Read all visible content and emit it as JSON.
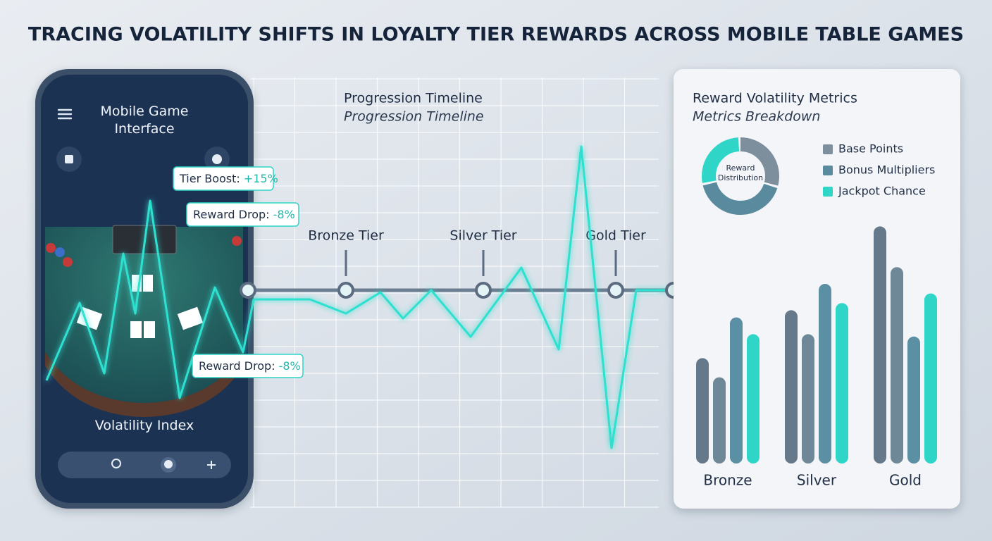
{
  "header": {
    "title": "TRACING VOLATILITY SHIFTS IN LOYALTY TIER REWARDS ACROSS MOBILE TABLE GAMES"
  },
  "phone": {
    "title": "Mobile Game Interface",
    "callouts": [
      {
        "label": "Tier Boost:",
        "value": "+15%"
      },
      {
        "label": "Reward Drop:",
        "value": "-8%"
      },
      {
        "label": "Reward Drop:",
        "value": "-8%"
      }
    ],
    "footer": "Volatility Index"
  },
  "timeline": {
    "title": "Progression Timeline",
    "subtitle": "Progression Timeline",
    "tiers": [
      "Bronze Tier",
      "Silver Tier",
      "Gold Tier"
    ]
  },
  "metrics": {
    "title": "Reward Volatility Metrics",
    "subtitle": "Metrics Breakdown",
    "donut": {
      "center_label": "Reward Distribution",
      "segments": [
        {
          "name": "Base Points",
          "color": "#7d8e9c",
          "value": 30
        },
        {
          "name": "Bonus Multipliers",
          "color": "#5a8a9e",
          "value": 42
        },
        {
          "name": "Jackpot Chance",
          "color": "#2fd6c8",
          "value": 28
        }
      ]
    },
    "bars": {
      "categories": [
        "Bronze",
        "Silver",
        "Gold"
      ],
      "series": [
        {
          "color": "#66798a",
          "values": [
            44,
            64,
            99
          ]
        },
        {
          "color": "#6f8898",
          "values": [
            36,
            54,
            82
          ]
        },
        {
          "color": "#5b8fa3",
          "values": [
            61,
            75,
            53
          ]
        },
        {
          "color": "#2fd6c8",
          "values": [
            54,
            67,
            71
          ]
        }
      ]
    }
  }
}
